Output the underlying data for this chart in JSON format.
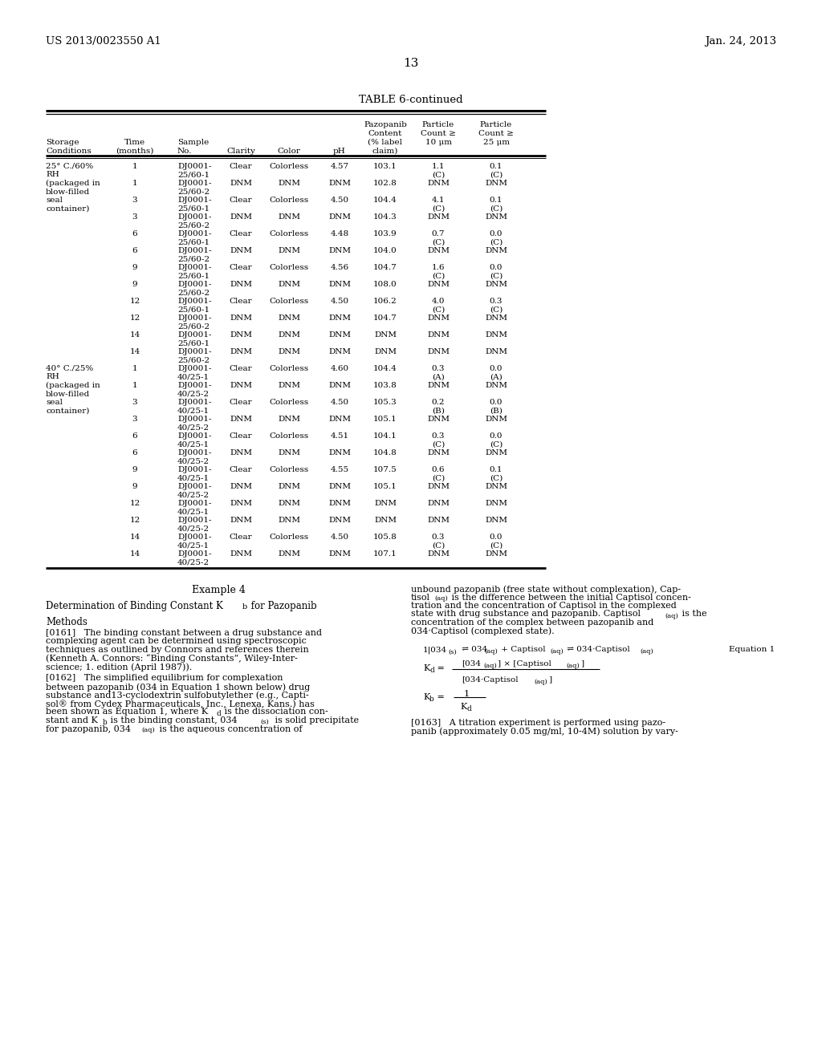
{
  "page_number": "13",
  "patent_left": "US 2013/0023550 A1",
  "patent_right": "Jan. 24, 2013",
  "table_title": "TABLE 6-continued",
  "rows": [
    [
      "25° C./60%",
      "1",
      "DJ0001-",
      "Clear",
      "Colorless",
      "4.57",
      "103.1",
      "1.1",
      "0.1"
    ],
    [
      "RH",
      "",
      "25/60-1",
      "",
      "",
      "",
      "",
      "(C)",
      "(C)"
    ],
    [
      "(packaged in",
      "1",
      "DJ0001-",
      "DNM",
      "DNM",
      "DNM",
      "102.8",
      "DNM",
      "DNM"
    ],
    [
      "blow-filled",
      "",
      "25/60-2",
      "",
      "",
      "",
      "",
      "",
      ""
    ],
    [
      "seal",
      "3",
      "DJ0001-",
      "Clear",
      "Colorless",
      "4.50",
      "104.4",
      "4.1",
      "0.1"
    ],
    [
      "container)",
      "",
      "25/60-1",
      "",
      "",
      "",
      "",
      "(C)",
      "(C)"
    ],
    [
      "",
      "3",
      "DJ0001-",
      "DNM",
      "DNM",
      "DNM",
      "104.3",
      "DNM",
      "DNM"
    ],
    [
      "",
      "",
      "25/60-2",
      "",
      "",
      "",
      "",
      "",
      ""
    ],
    [
      "",
      "6",
      "DJ0001-",
      "Clear",
      "Colorless",
      "4.48",
      "103.9",
      "0.7",
      "0.0"
    ],
    [
      "",
      "",
      "25/60-1",
      "",
      "",
      "",
      "",
      "(C)",
      "(C)"
    ],
    [
      "",
      "6",
      "DJ0001-",
      "DNM",
      "DNM",
      "DNM",
      "104.0",
      "DNM",
      "DNM"
    ],
    [
      "",
      "",
      "25/60-2",
      "",
      "",
      "",
      "",
      "",
      ""
    ],
    [
      "",
      "9",
      "DJ0001-",
      "Clear",
      "Colorless",
      "4.56",
      "104.7",
      "1.6",
      "0.0"
    ],
    [
      "",
      "",
      "25/60-1",
      "",
      "",
      "",
      "",
      "(C)",
      "(C)"
    ],
    [
      "",
      "9",
      "DJ0001-",
      "DNM",
      "DNM",
      "DNM",
      "108.0",
      "DNM",
      "DNM"
    ],
    [
      "",
      "",
      "25/60-2",
      "",
      "",
      "",
      "",
      "",
      ""
    ],
    [
      "",
      "12",
      "DJ0001-",
      "Clear",
      "Colorless",
      "4.50",
      "106.2",
      "4.0",
      "0.3"
    ],
    [
      "",
      "",
      "25/60-1",
      "",
      "",
      "",
      "",
      "(C)",
      "(C)"
    ],
    [
      "",
      "12",
      "DJ0001-",
      "DNM",
      "DNM",
      "DNM",
      "104.7",
      "DNM",
      "DNM"
    ],
    [
      "",
      "",
      "25/60-2",
      "",
      "",
      "",
      "",
      "",
      ""
    ],
    [
      "",
      "14",
      "DJ0001-",
      "DNM",
      "DNM",
      "DNM",
      "DNM",
      "DNM",
      "DNM"
    ],
    [
      "",
      "",
      "25/60-1",
      "",
      "",
      "",
      "",
      "",
      ""
    ],
    [
      "",
      "14",
      "DJ0001-",
      "DNM",
      "DNM",
      "DNM",
      "DNM",
      "DNM",
      "DNM"
    ],
    [
      "",
      "",
      "25/60-2",
      "",
      "",
      "",
      "",
      "",
      ""
    ],
    [
      "40° C./25%",
      "1",
      "DJ0001-",
      "Clear",
      "Colorless",
      "4.60",
      "104.4",
      "0.3",
      "0.0"
    ],
    [
      "RH",
      "",
      "40/25-1",
      "",
      "",
      "",
      "",
      "(A)",
      "(A)"
    ],
    [
      "(packaged in",
      "1",
      "DJ0001-",
      "DNM",
      "DNM",
      "DNM",
      "103.8",
      "DNM",
      "DNM"
    ],
    [
      "blow-filled",
      "",
      "40/25-2",
      "",
      "",
      "",
      "",
      "",
      ""
    ],
    [
      "seal",
      "3",
      "DJ0001-",
      "Clear",
      "Colorless",
      "4.50",
      "105.3",
      "0.2",
      "0.0"
    ],
    [
      "container)",
      "",
      "40/25-1",
      "",
      "",
      "",
      "",
      "(B)",
      "(B)"
    ],
    [
      "",
      "3",
      "DJ0001-",
      "DNM",
      "DNM",
      "DNM",
      "105.1",
      "DNM",
      "DNM"
    ],
    [
      "",
      "",
      "40/25-2",
      "",
      "",
      "",
      "",
      "",
      ""
    ],
    [
      "",
      "6",
      "DJ0001-",
      "Clear",
      "Colorless",
      "4.51",
      "104.1",
      "0.3",
      "0.0"
    ],
    [
      "",
      "",
      "40/25-1",
      "",
      "",
      "",
      "",
      "(C)",
      "(C)"
    ],
    [
      "",
      "6",
      "DJ0001-",
      "DNM",
      "DNM",
      "DNM",
      "104.8",
      "DNM",
      "DNM"
    ],
    [
      "",
      "",
      "40/25-2",
      "",
      "",
      "",
      "",
      "",
      ""
    ],
    [
      "",
      "9",
      "DJ0001-",
      "Clear",
      "Colorless",
      "4.55",
      "107.5",
      "0.6",
      "0.1"
    ],
    [
      "",
      "",
      "40/25-1",
      "",
      "",
      "",
      "",
      "(C)",
      "(C)"
    ],
    [
      "",
      "9",
      "DJ0001-",
      "DNM",
      "DNM",
      "DNM",
      "105.1",
      "DNM",
      "DNM"
    ],
    [
      "",
      "",
      "40/25-2",
      "",
      "",
      "",
      "",
      "",
      ""
    ],
    [
      "",
      "12",
      "DJ0001-",
      "DNM",
      "DNM",
      "DNM",
      "DNM",
      "DNM",
      "DNM"
    ],
    [
      "",
      "",
      "40/25-1",
      "",
      "",
      "",
      "",
      "",
      ""
    ],
    [
      "",
      "12",
      "DJ0001-",
      "DNM",
      "DNM",
      "DNM",
      "DNM",
      "DNM",
      "DNM"
    ],
    [
      "",
      "",
      "40/25-2",
      "",
      "",
      "",
      "",
      "",
      ""
    ],
    [
      "",
      "14",
      "DJ0001-",
      "Clear",
      "Colorless",
      "4.50",
      "105.8",
      "0.3",
      "0.0"
    ],
    [
      "",
      "",
      "40/25-1",
      "",
      "",
      "",
      "",
      "(C)",
      "(C)"
    ],
    [
      "",
      "14",
      "DJ0001-",
      "DNM",
      "DNM",
      "DNM",
      "107.1",
      "DNM",
      "DNM"
    ],
    [
      "",
      "",
      "40/25-2",
      "",
      "",
      "",
      "",
      "",
      ""
    ]
  ],
  "bg_color": "#ffffff"
}
